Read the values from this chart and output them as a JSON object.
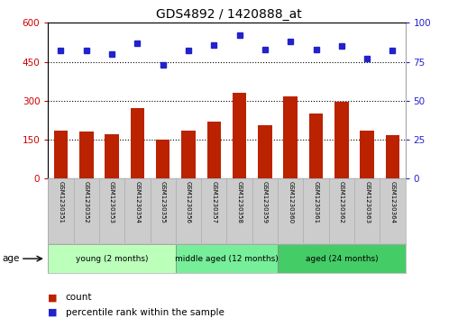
{
  "title": "GDS4892 / 1420888_at",
  "samples": [
    "GSM1230351",
    "GSM1230352",
    "GSM1230353",
    "GSM1230354",
    "GSM1230355",
    "GSM1230356",
    "GSM1230357",
    "GSM1230358",
    "GSM1230359",
    "GSM1230360",
    "GSM1230361",
    "GSM1230362",
    "GSM1230363",
    "GSM1230364"
  ],
  "counts": [
    185,
    180,
    170,
    270,
    150,
    185,
    220,
    330,
    205,
    315,
    250,
    295,
    185,
    165
  ],
  "percentiles": [
    82,
    82,
    80,
    87,
    73,
    82,
    86,
    92,
    83,
    88,
    83,
    85,
    77,
    82
  ],
  "bar_color": "#bb2200",
  "dot_color": "#2222cc",
  "ylim_left": [
    0,
    600
  ],
  "ylim_right": [
    0,
    100
  ],
  "yticks_left": [
    0,
    150,
    300,
    450,
    600
  ],
  "yticks_right": [
    0,
    25,
    50,
    75,
    100
  ],
  "groups": [
    {
      "label": "young (2 months)",
      "start": 0,
      "end": 5,
      "color": "#bbffbb"
    },
    {
      "label": "middle aged (12 months)",
      "start": 5,
      "end": 9,
      "color": "#77ee99"
    },
    {
      "label": "aged (24 months)",
      "start": 9,
      "end": 14,
      "color": "#44cc66"
    }
  ],
  "age_label": "age",
  "legend_count_label": "count",
  "legend_pct_label": "percentile rank within the sample",
  "bg_color": "#ffffff",
  "plot_bg_color": "#ffffff",
  "tick_color_left": "#cc0000",
  "tick_color_right": "#2222cc",
  "grid_color": "#000000",
  "ticklabel_bg": "#cccccc",
  "title_fontsize": 10,
  "bar_width": 0.55
}
